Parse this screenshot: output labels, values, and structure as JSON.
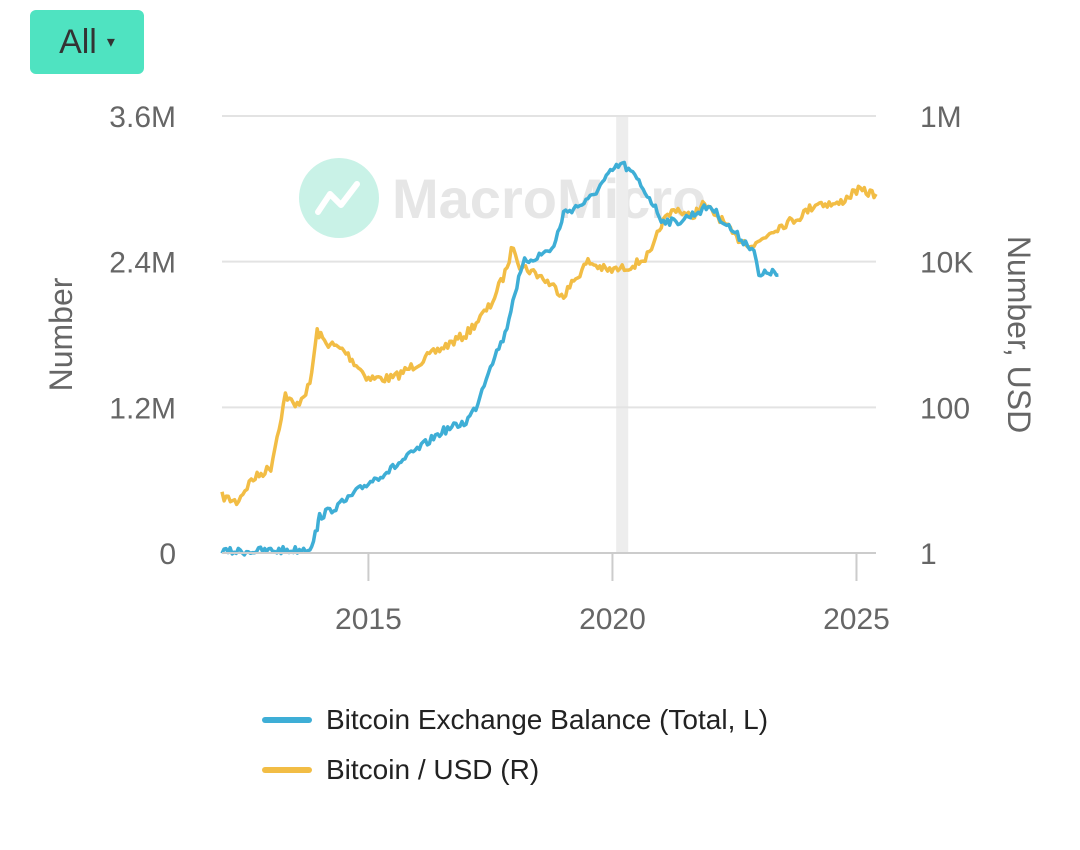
{
  "range_selector": {
    "label": "All",
    "caret": "▾"
  },
  "watermark": {
    "text": "MacroMicro"
  },
  "colors": {
    "balance": "#3eaed6",
    "price": "#f2bd45",
    "grid": "#e3e3e3",
    "axis": "#cccccc",
    "highlight": "#ededed"
  },
  "chart_data": {
    "type": "line",
    "xlim": [
      2012,
      2025.4
    ],
    "x_ticks": [
      "2015",
      "2020",
      "2025"
    ],
    "y_left": {
      "label": "Number",
      "range": [
        0,
        3600000
      ],
      "ticks": [
        "0",
        "1.2M",
        "2.4M",
        "3.6M"
      ]
    },
    "y_right": {
      "label": "Number, USD",
      "scale": "log",
      "range": [
        1,
        1000000
      ],
      "ticks": [
        "1",
        "100",
        "10K",
        "1M"
      ]
    },
    "highlight_x": 2020.2,
    "legend_position": "bottom",
    "series": [
      {
        "name": "Bitcoin Exchange Balance (Total, L)",
        "axis": "left",
        "x": [
          2012.0,
          2012.5,
          2013.0,
          2013.5,
          2013.8,
          2013.95,
          2014.0,
          2014.5,
          2015.0,
          2015.5,
          2016.0,
          2016.5,
          2017.0,
          2017.2,
          2017.5,
          2017.8,
          2018.0,
          2018.2,
          2018.5,
          2018.8,
          2019.0,
          2019.5,
          2020.0,
          2020.2,
          2020.5,
          2020.8,
          2021.0,
          2021.3,
          2021.6,
          2022.0,
          2022.3,
          2022.6,
          2022.9,
          2023.0,
          2023.2,
          2023.4
        ],
        "values": [
          10000,
          15000,
          20000,
          25000,
          40000,
          200000,
          300000,
          420000,
          580000,
          700000,
          850000,
          1000000,
          1080000,
          1200000,
          1550000,
          1800000,
          2150000,
          2400000,
          2450000,
          2520000,
          2800000,
          2900000,
          3150000,
          3210000,
          3080000,
          2900000,
          2750000,
          2720000,
          2780000,
          2860000,
          2720000,
          2600000,
          2500000,
          2270000,
          2320000,
          2290000
        ]
      },
      {
        "name": "Bitcoin / USD (R)",
        "axis": "right",
        "x": [
          2012.0,
          2012.3,
          2012.6,
          2013.0,
          2013.3,
          2013.5,
          2013.8,
          2013.95,
          2014.1,
          2014.5,
          2015.0,
          2015.5,
          2016.0,
          2016.5,
          2017.0,
          2017.5,
          2017.8,
          2017.97,
          2018.1,
          2018.5,
          2019.0,
          2019.5,
          2019.9,
          2020.2,
          2020.5,
          2020.8,
          2021.0,
          2021.3,
          2021.6,
          2021.85,
          2022.2,
          2022.5,
          2022.9,
          2023.3,
          2023.8,
          2024.2,
          2024.6,
          2025.0,
          2025.4
        ],
        "values": [
          6,
          5,
          10,
          15,
          150,
          100,
          200,
          1100,
          800,
          600,
          250,
          250,
          400,
          650,
          1000,
          2500,
          7000,
          17000,
          9000,
          6500,
          3500,
          10000,
          7500,
          8000,
          9500,
          13000,
          33000,
          55000,
          40000,
          60000,
          40000,
          22000,
          16500,
          28000,
          40000,
          65000,
          60000,
          95000,
          85000
        ]
      }
    ]
  }
}
